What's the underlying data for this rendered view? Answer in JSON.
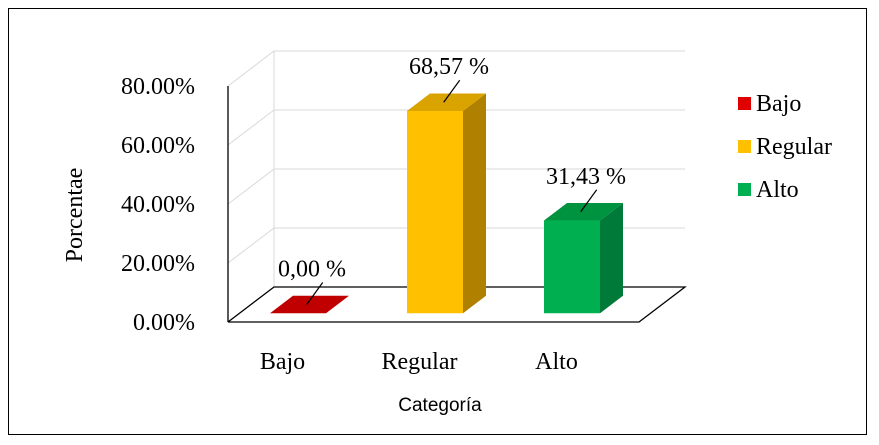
{
  "chart_data": {
    "type": "bar",
    "title": "",
    "categories": [
      "Bajo",
      "Regular",
      "Alto"
    ],
    "values": [
      0.0,
      68.57,
      31.43
    ],
    "data_labels": [
      "0,00 %",
      "68,57 %",
      "31,43 %"
    ],
    "xlabel": "Categoría",
    "ylabel": "Porcentae",
    "ylim": [
      0,
      80
    ],
    "yticks": [
      "0.00%",
      "20.00%",
      "40.00%",
      "60.00%",
      "80.00%"
    ],
    "ytick_values": [
      0,
      20,
      40,
      60,
      80
    ],
    "grid": true,
    "three_d": true,
    "legend": {
      "position": "right",
      "items": [
        {
          "label": "Bajo",
          "color": "#E00000"
        },
        {
          "label": "Regular",
          "color": "#FFC000"
        },
        {
          "label": "Alto",
          "color": "#00B050"
        }
      ]
    },
    "colors": {
      "Bajo": {
        "front": "#E00000",
        "side": "#A00000",
        "top": "#C00000"
      },
      "Regular": {
        "front": "#FFC000",
        "side": "#B08000",
        "top": "#D9A300"
      },
      "Alto": {
        "front": "#00B050",
        "side": "#007A38",
        "top": "#00933F"
      }
    }
  }
}
